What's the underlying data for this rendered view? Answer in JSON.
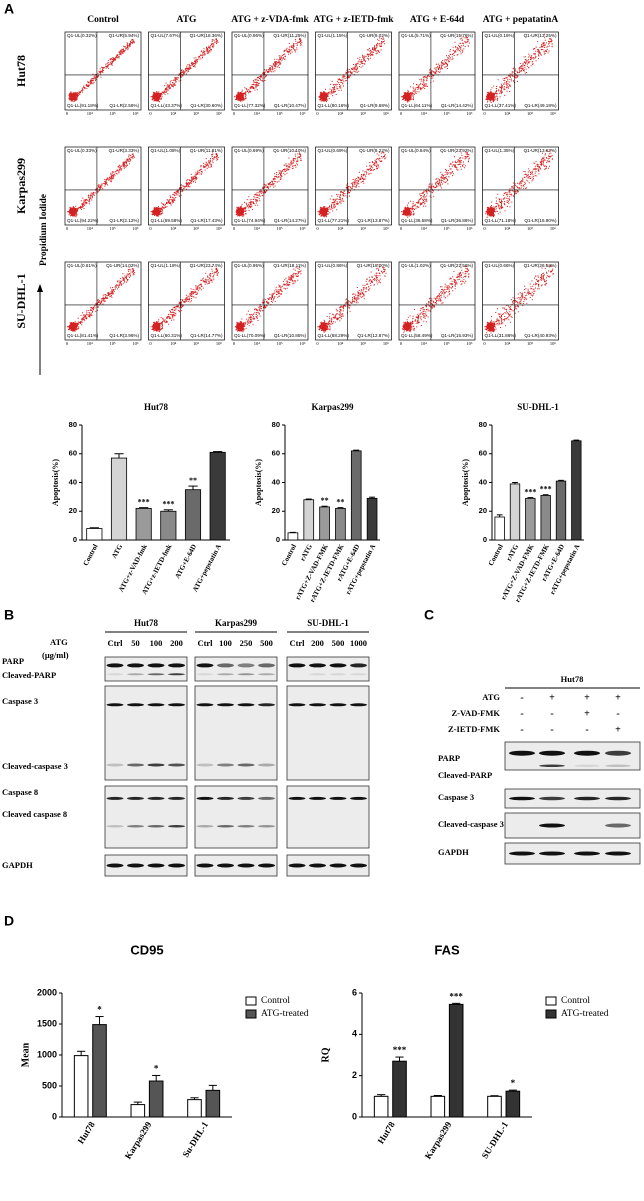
{
  "panel_labels": [
    "A",
    "B",
    "C",
    "D"
  ],
  "flow_cytometry": {
    "columns": [
      "Control",
      "ATG",
      "ATG + z-VDA-fmk",
      "ATG + z-IETD-fmk",
      "ATG + E-64d",
      "ATG + pepatatinA"
    ],
    "rows": [
      "Hut78",
      "Karpas299",
      "SU-DHL-1"
    ],
    "axis_label": "Propidium Iodide",
    "ticks": [
      "0",
      "10⁴",
      "10⁵",
      "10⁶"
    ],
    "quadrants": [
      [
        [
          "Q1-UL(0.32%)",
          "Q1-UR(5.94%)",
          "Q1-LL(91.18%)",
          "Q1-LR(2.56%)"
        ],
        [
          "Q1-UL(7.67%)",
          "Q1-UR(18.36%)",
          "Q1-LL(43.37%)",
          "Q1-LR(30.60%)"
        ],
        [
          "Q1-UL(0.96%)",
          "Q1-UR(11.25%)",
          "Q1-LL(77.32%)",
          "Q1-LR(10.47%)"
        ],
        [
          "Q1-UL(1.15%)",
          "Q1-UR(9.02%)",
          "Q1-LL(80.16%)",
          "Q1-LR(9.68%)"
        ],
        [
          "Q1-UL(5.71%)",
          "Q1-UR(15.76%)",
          "Q1-LL(64.11%)",
          "Q1-LR(14.42%)"
        ],
        [
          "Q1-UL(0.16%)",
          "Q1-UR(13.25%)",
          "Q1-LL(37.41%)",
          "Q1-LR(49.18%)"
        ]
      ],
      [
        [
          "Q1-UL(0.33%)",
          "Q1-UR(3.33%)",
          "Q1-LL(94.22%)",
          "Q1-LR(2.12%)"
        ],
        [
          "Q1-UL(1.08%)",
          "Q1-UR(11.81%)",
          "Q1-LL(69.58%)",
          "Q1-LR(17.43%)"
        ],
        [
          "Q1-UL(0.69%)",
          "Q1-UR(10.10%)",
          "Q1-LL(74.94%)",
          "Q1-LR(14.27%)"
        ],
        [
          "Q1-UL(0.69%)",
          "Q1-UR(8.22%)",
          "Q1-LL(77.21%)",
          "Q1-LR(13.87%)"
        ],
        [
          "Q1-UL(0.64%)",
          "Q1-UR(23.92%)",
          "Q1-LL(38.58%)",
          "Q1-LR(36.86%)"
        ],
        [
          "Q1-UL(1.35%)",
          "Q1-UR(13.67%)",
          "Q1-LL(71.18%)",
          "Q1-LR(16.90%)"
        ]
      ],
      [
        [
          "Q1-UL(0.61%)",
          "Q1-UR(14.02%)",
          "Q1-LL(81.41%)",
          "Q1-LR(3.96%)"
        ],
        [
          "Q1-UL(1.18%)",
          "Q1-UR(23.74%)",
          "Q1-LL(60.31%)",
          "Q1-LR(14.77%)"
        ],
        [
          "Q1-UL(0.95%)",
          "Q1-UR(18.11%)",
          "Q1-LL(70.09%)",
          "Q1-LR(10.85%)"
        ],
        [
          "Q1-UL(0.86%)",
          "Q1-UR(18.00%)",
          "Q1-LL(68.29%)",
          "Q1-LR(12.87%)"
        ],
        [
          "Q1-UL(1.02%)",
          "Q1-UR(22.56%)",
          "Q1-LL(58.49%)",
          "Q1-LR(15.93%)"
        ],
        [
          "Q1-UL(0.66%)",
          "Q1-UR(26.53%)",
          "Q1-LL(31.86%)",
          "Q1-LR(40.93%)"
        ]
      ]
    ]
  },
  "chart_data": [
    {
      "type": "bar",
      "title": "Hut78",
      "y_label": "Apoptosis(%)",
      "categories": [
        "Control",
        "ATG",
        "ATG+z-VAD-fmk",
        "ATG+z-IETD-fmk",
        "ATG+E-64D",
        "ATG+pepstatin A"
      ],
      "values": [
        8,
        57,
        22,
        20,
        35,
        61
      ],
      "errors": [
        0.5,
        3,
        0.5,
        1,
        2.5,
        0.5
      ],
      "annotations": [
        null,
        null,
        "***",
        "***",
        "**",
        null
      ],
      "colors": [
        "#ffffff",
        "#d4d4d4",
        "#9a9a9a",
        "#8a8a8a",
        "#6a6a6a",
        "#3a3a3a"
      ],
      "ylim": [
        0,
        80
      ],
      "yticks": [
        0,
        20,
        40,
        60,
        80
      ]
    },
    {
      "type": "bar",
      "title": "Karpas299",
      "y_label": "Apoptosis(%)",
      "categories": [
        "Control",
        "rATG",
        "rATG+Z-VAD-FMK",
        "rATG+Z-IETD-FMK",
        "rATG+E-64D",
        "rATG+pepstatin A"
      ],
      "values": [
        5,
        28,
        23,
        22,
        62,
        29
      ],
      "errors": [
        0.3,
        0.5,
        0.5,
        0.5,
        0.5,
        0.8
      ],
      "annotations": [
        null,
        null,
        "**",
        "**",
        null,
        null
      ],
      "colors": [
        "#ffffff",
        "#d4d4d4",
        "#9a9a9a",
        "#8a8a8a",
        "#6a6a6a",
        "#3a3a3a"
      ],
      "ylim": [
        0,
        80
      ],
      "yticks": [
        0,
        20,
        40,
        60,
        80
      ]
    },
    {
      "type": "bar",
      "title": "SU-DHL-1",
      "y_label": "Apoptosis(%)",
      "categories": [
        "Control",
        "rATG",
        "rATG+Z-VAD-FMK",
        "rATG+Z-IETD-FMK",
        "rATG+E-64D",
        "rATG+pepstatin A"
      ],
      "values": [
        16,
        39,
        29,
        31,
        41,
        69
      ],
      "errors": [
        1.5,
        1,
        0.5,
        0.5,
        0.5,
        0.5
      ],
      "annotations": [
        null,
        null,
        "***",
        "***",
        null,
        null
      ],
      "colors": [
        "#ffffff",
        "#d4d4d4",
        "#9a9a9a",
        "#8a8a8a",
        "#6a6a6a",
        "#3a3a3a"
      ],
      "ylim": [
        0,
        80
      ],
      "yticks": [
        0,
        20,
        40,
        60,
        80
      ]
    },
    {
      "type": "grouped_bar",
      "title": "CD95",
      "y_label": "Mean",
      "categories": [
        "Hut78",
        "Karpas299",
        "Su-DHL-1"
      ],
      "series": [
        {
          "name": "Control",
          "color": "#ffffff",
          "values": [
            990,
            200,
            280
          ],
          "errors": [
            70,
            40,
            30
          ],
          "annotations": [
            null,
            null,
            null
          ]
        },
        {
          "name": "ATG-treated",
          "color": "#555555",
          "values": [
            1490,
            580,
            430
          ],
          "errors": [
            130,
            90,
            80
          ],
          "annotations": [
            "*",
            "*",
            null
          ]
        }
      ],
      "legend": "upper right",
      "ylim": [
        0,
        2000
      ],
      "yticks": [
        0,
        500,
        1000,
        1500,
        2000
      ]
    },
    {
      "type": "grouped_bar",
      "title": "FAS",
      "y_label": "RQ",
      "categories": [
        "Hut78",
        "Karpas299",
        "SU-DHL-1"
      ],
      "series": [
        {
          "name": "Control",
          "color": "#ffffff",
          "values": [
            1.0,
            1.0,
            1.0
          ],
          "errors": [
            0.08,
            0.04,
            0.03
          ],
          "annotations": [
            null,
            null,
            null
          ]
        },
        {
          "name": "ATG-treated",
          "color": "#333333",
          "values": [
            2.7,
            5.45,
            1.25
          ],
          "errors": [
            0.2,
            0.05,
            0.05
          ],
          "annotations": [
            "***",
            "***",
            "*"
          ]
        }
      ],
      "legend": "upper right",
      "ylim": [
        0,
        6
      ],
      "yticks": [
        0,
        2,
        4,
        6
      ]
    }
  ],
  "western_blot_b": {
    "dose_label": [
      "ATG",
      "(μg/ml)"
    ],
    "groups": [
      {
        "name": "Hut78",
        "lanes": [
          "Ctrl",
          "50",
          "100",
          "200"
        ]
      },
      {
        "name": "Karpas299",
        "lanes": [
          "Ctrl",
          "100",
          "250",
          "500"
        ]
      },
      {
        "name": "SU-DHL-1",
        "lanes": [
          "Ctrl",
          "200",
          "500",
          "1000"
        ]
      }
    ],
    "row_labels": [
      "PARP",
      "Cleaved-PARP",
      "Caspase 3",
      "Cleaved-caspase 3",
      "Caspase 8",
      "Cleaved caspase 8",
      "GAPDH"
    ]
  },
  "western_blot_c": {
    "title": "Hut78",
    "treatments": [
      {
        "name": "ATG",
        "signs": [
          "-",
          "+",
          "+",
          "+"
        ]
      },
      {
        "name": "Z-VAD-FMK",
        "signs": [
          "-",
          "-",
          "+",
          "-"
        ]
      },
      {
        "name": "Z-IETD-FMK",
        "signs": [
          "-",
          "-",
          "-",
          "+"
        ]
      }
    ],
    "row_labels": [
      "PARP",
      "Cleaved-PARP",
      "Caspase 3",
      "Cleaved-caspase 3",
      "GAPDH"
    ]
  }
}
